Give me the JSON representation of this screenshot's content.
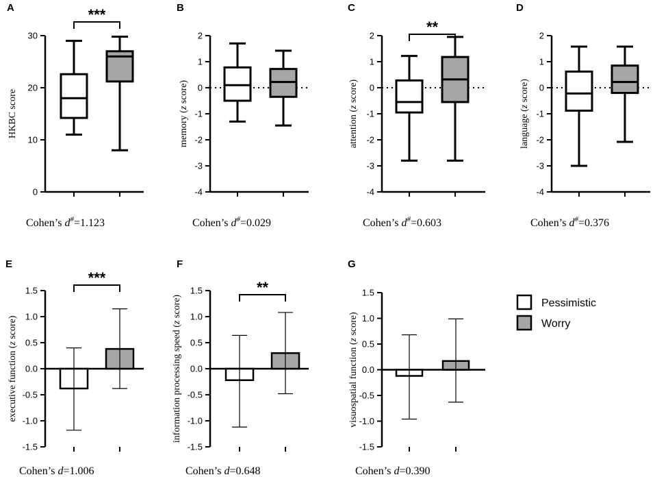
{
  "legend": {
    "items": [
      {
        "label": "Pessimistic",
        "color": "#ffffff"
      },
      {
        "label": "Worry",
        "color": "#a6a6a6"
      }
    ]
  },
  "chart_data": [
    {
      "panel": "A",
      "type": "box",
      "ylabel": "HKBC score",
      "ylabel_italic": "",
      "ylim": [
        0,
        30
      ],
      "yticks": [
        0,
        10,
        20,
        30
      ],
      "tick_labels": [
        "0",
        "10",
        "20",
        "30"
      ],
      "zero_line": false,
      "caption": {
        "prefix": "Cohen’s ",
        "d": "d",
        "sup": "#",
        "value": "=1.123"
      },
      "significance": "***",
      "series": [
        {
          "name": "Pessimistic",
          "min": 11,
          "q1": 14.2,
          "median": 18,
          "q3": 22.6,
          "max": 29
        },
        {
          "name": "Worry",
          "min": 8,
          "q1": 21.2,
          "median": 26,
          "q3": 27,
          "max": 29.8
        }
      ]
    },
    {
      "panel": "B",
      "type": "box",
      "ylabel": "memory (",
      "ylabel_italic": "z",
      "ylabel_end": " score)",
      "ylim": [
        -4,
        2
      ],
      "yticks": [
        -4,
        -3,
        -2,
        -1,
        0,
        1,
        2
      ],
      "tick_labels": [
        "-4",
        "-3",
        "-2",
        "-1",
        "0",
        "1",
        "2"
      ],
      "zero_line": true,
      "caption": {
        "prefix": "Cohen’s ",
        "d": "d",
        "sup": "#",
        "value": "=0.029"
      },
      "significance": "",
      "series": [
        {
          "name": "Pessimistic",
          "min": -1.3,
          "q1": -0.5,
          "median": 0.1,
          "q3": 0.78,
          "max": 1.7
        },
        {
          "name": "Worry",
          "min": -1.45,
          "q1": -0.35,
          "median": 0.22,
          "q3": 0.72,
          "max": 1.42
        }
      ]
    },
    {
      "panel": "C",
      "type": "box",
      "ylabel": "attention (",
      "ylabel_italic": "z",
      "ylabel_end": " score)",
      "ylim": [
        -4,
        2
      ],
      "yticks": [
        -4,
        -3,
        -2,
        -1,
        0,
        1,
        2
      ],
      "tick_labels": [
        "-4",
        "-3",
        "-2",
        "-1",
        "0",
        "1",
        "2"
      ],
      "zero_line": true,
      "caption": {
        "prefix": "Cohen’s ",
        "d": "d",
        "sup": "#",
        "value": "=0.603"
      },
      "significance": "**",
      "series": [
        {
          "name": "Pessimistic",
          "min": -2.8,
          "q1": -0.95,
          "median": -0.55,
          "q3": 0.28,
          "max": 1.22
        },
        {
          "name": "Worry",
          "min": -2.8,
          "q1": -0.55,
          "median": 0.32,
          "q3": 1.18,
          "max": 1.95
        }
      ]
    },
    {
      "panel": "D",
      "type": "box",
      "ylabel": "language (",
      "ylabel_italic": "z",
      "ylabel_end": " score)",
      "ylim": [
        -4,
        2
      ],
      "yticks": [
        -4,
        -3,
        -2,
        -1,
        0,
        1,
        2
      ],
      "tick_labels": [
        "-4",
        "-3",
        "-2",
        "-1",
        "0",
        "1",
        "2"
      ],
      "zero_line": true,
      "caption": {
        "prefix": "Cohen’s ",
        "d": "d",
        "sup": "#",
        "value": "=0.376"
      },
      "significance": "",
      "series": [
        {
          "name": "Pessimistic",
          "min": -3,
          "q1": -0.88,
          "median": -0.22,
          "q3": 0.62,
          "max": 1.58
        },
        {
          "name": "Worry",
          "min": -2.08,
          "q1": -0.2,
          "median": 0.22,
          "q3": 0.85,
          "max": 1.58
        }
      ]
    },
    {
      "panel": "E",
      "type": "bar",
      "ylabel": "executive function (",
      "ylabel_italic": "z",
      "ylabel_end": " score)",
      "ylim": [
        -1.5,
        1.5
      ],
      "yticks": [
        -1.5,
        -1,
        -0.5,
        0,
        0.5,
        1,
        1.5
      ],
      "tick_labels": [
        "-1.5",
        "-1.0",
        "-0.5",
        "0.0",
        "0.5",
        "1.0",
        "1.5"
      ],
      "zero_line": false,
      "caption": {
        "prefix": "Cohen’s ",
        "d": "d",
        "sup": "",
        "value": "=1.006"
      },
      "significance": "***",
      "series": [
        {
          "name": "Pessimistic",
          "value": -0.38,
          "err_low": -1.18,
          "err_high": 0.4
        },
        {
          "name": "Worry",
          "value": 0.38,
          "err_low": -0.38,
          "err_high": 1.15
        }
      ]
    },
    {
      "panel": "F",
      "type": "bar",
      "ylabel": "information processing speed (",
      "ylabel_italic": "z",
      "ylabel_end": " score)",
      "ylim": [
        -1.5,
        1.5
      ],
      "yticks": [
        -1.5,
        -1,
        -0.5,
        0,
        0.5,
        1,
        1.5
      ],
      "tick_labels": [
        "-1.5",
        "-1.0",
        "-0.5",
        "0.0",
        "0.5",
        "1.0",
        "1.5"
      ],
      "zero_line": false,
      "caption": {
        "prefix": "Cohen’s ",
        "d": "d",
        "sup": "",
        "value": "=0.648"
      },
      "significance": "**",
      "series": [
        {
          "name": "Pessimistic",
          "value": -0.22,
          "err_low": -1.12,
          "err_high": 0.64
        },
        {
          "name": "Worry",
          "value": 0.3,
          "err_low": -0.48,
          "err_high": 1.08
        }
      ]
    },
    {
      "panel": "G",
      "type": "bar",
      "ylabel": "visuospatial function (",
      "ylabel_italic": "z",
      "ylabel_end": " score)",
      "ylim": [
        -1.5,
        1.5
      ],
      "yticks": [
        -1.5,
        -1,
        -0.5,
        0,
        0.5,
        1,
        1.5
      ],
      "tick_labels": [
        "-1.5",
        "-1.0",
        "-0.5",
        "0.0",
        "0.5",
        "1.0",
        "1.5"
      ],
      "zero_line": false,
      "caption": {
        "prefix": "Cohen’s ",
        "d": "d",
        "sup": "",
        "value": "=0.390"
      },
      "significance": "",
      "series": [
        {
          "name": "Pessimistic",
          "value": -0.12,
          "err_low": -0.96,
          "err_high": 0.68
        },
        {
          "name": "Worry",
          "value": 0.17,
          "err_low": -0.63,
          "err_high": 0.99
        }
      ]
    }
  ]
}
